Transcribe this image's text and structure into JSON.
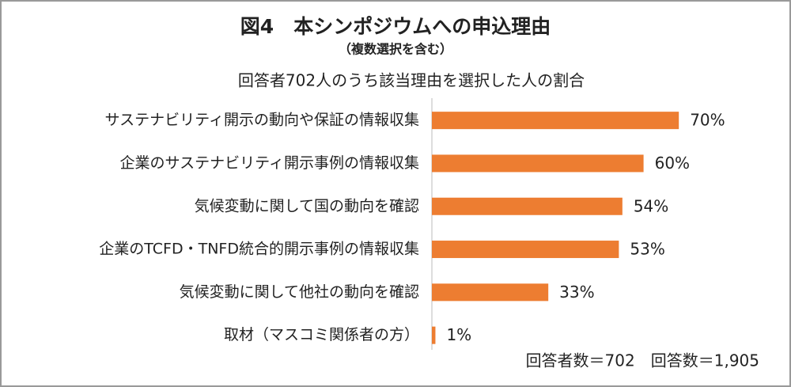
{
  "chart_data": {
    "type": "bar",
    "orientation": "horizontal",
    "title": "図4　本シンポジウムへの申込理由",
    "subtitle": "（複数選択を含む）",
    "axis_label": "回答者702人のうち該当理由を選択した人の割合",
    "categories": [
      "サステナビリティ開示の動向や保証の情報収集",
      "企業のサステナビリティ開示事例の情報収集",
      "気候変動に関して国の動向を確認",
      "企業のTCFD・TNFD統合的開示事例の情報収集",
      "気候変動に関して他社の動向を確認",
      "取材（マスコミ関係者の方）"
    ],
    "values": [
      70,
      60,
      54,
      53,
      33,
      1
    ],
    "value_labels": [
      "70%",
      "60%",
      "54%",
      "53%",
      "33%",
      "1%"
    ],
    "color": "#ed7d31",
    "xlim": [
      0,
      100
    ],
    "annotation": "回答者数＝702　回答数＝1,905"
  }
}
